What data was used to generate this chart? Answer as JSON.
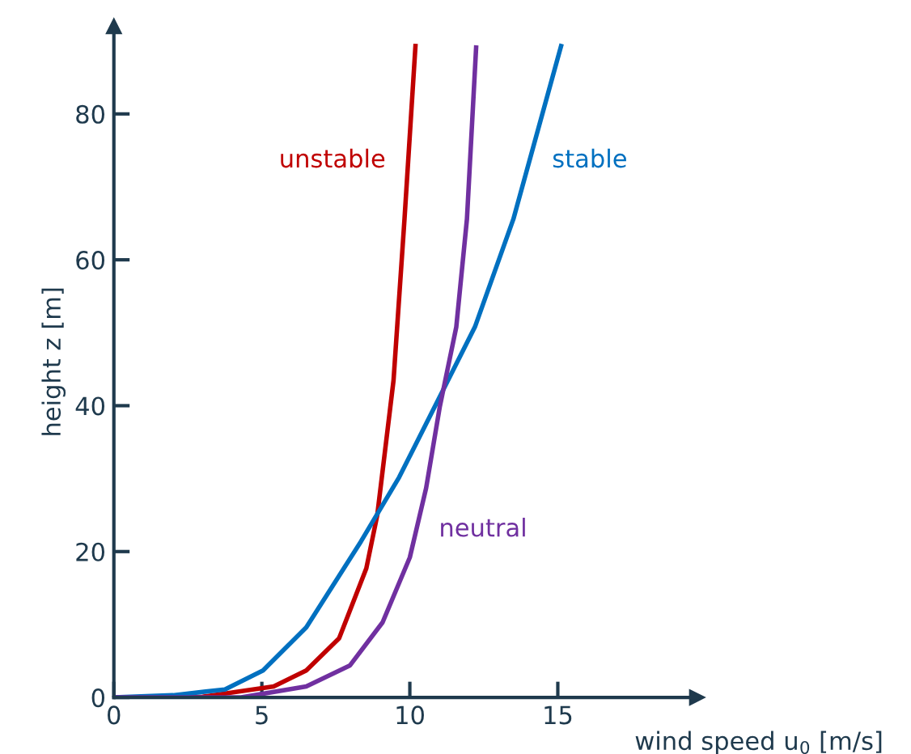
{
  "chart_data": {
    "type": "line",
    "xlabel": "wind speed u$_{0}$ [m/s]",
    "ylabel": "height z [m]",
    "xlim": [
      0,
      19.7
    ],
    "ylim": [
      0,
      92
    ],
    "xticks": [
      0,
      5,
      10,
      15
    ],
    "yticks": [
      0,
      20,
      40,
      60,
      80
    ],
    "grid": false,
    "legend": false,
    "marker": "none",
    "line_style": "solid",
    "series": [
      {
        "name": "unstable",
        "color": "#c00000",
        "x": [
          0,
          3,
          5.4,
          6.5,
          7.61,
          8.53,
          8.9,
          9.45,
          9.82,
          10.19
        ],
        "values": [
          0,
          0.1,
          1.5,
          3.7,
          8.1,
          17.7,
          25,
          43.5,
          65.6,
          89.3
        ]
      },
      {
        "name": "stable",
        "color": "#0070c0",
        "x": [
          0,
          2,
          3.75,
          5.04,
          6.5,
          8.35,
          9.64,
          10.92,
          12.2,
          13.5,
          15.11
        ],
        "values": [
          0,
          0.3,
          1.1,
          3.7,
          9.6,
          21.4,
          30.2,
          40.5,
          50.8,
          65.6,
          89.3
        ]
      },
      {
        "name": "neutral",
        "color": "#7030a0",
        "x": [
          0,
          4.3,
          6.5,
          7.98,
          9.08,
          10.0,
          10.55,
          11.01,
          11.57,
          11.93,
          12.24
        ],
        "values": [
          0,
          0,
          1.5,
          4.4,
          10.3,
          19.2,
          28.7,
          39.8,
          50.8,
          65.6,
          89.1
        ]
      }
    ]
  }
}
